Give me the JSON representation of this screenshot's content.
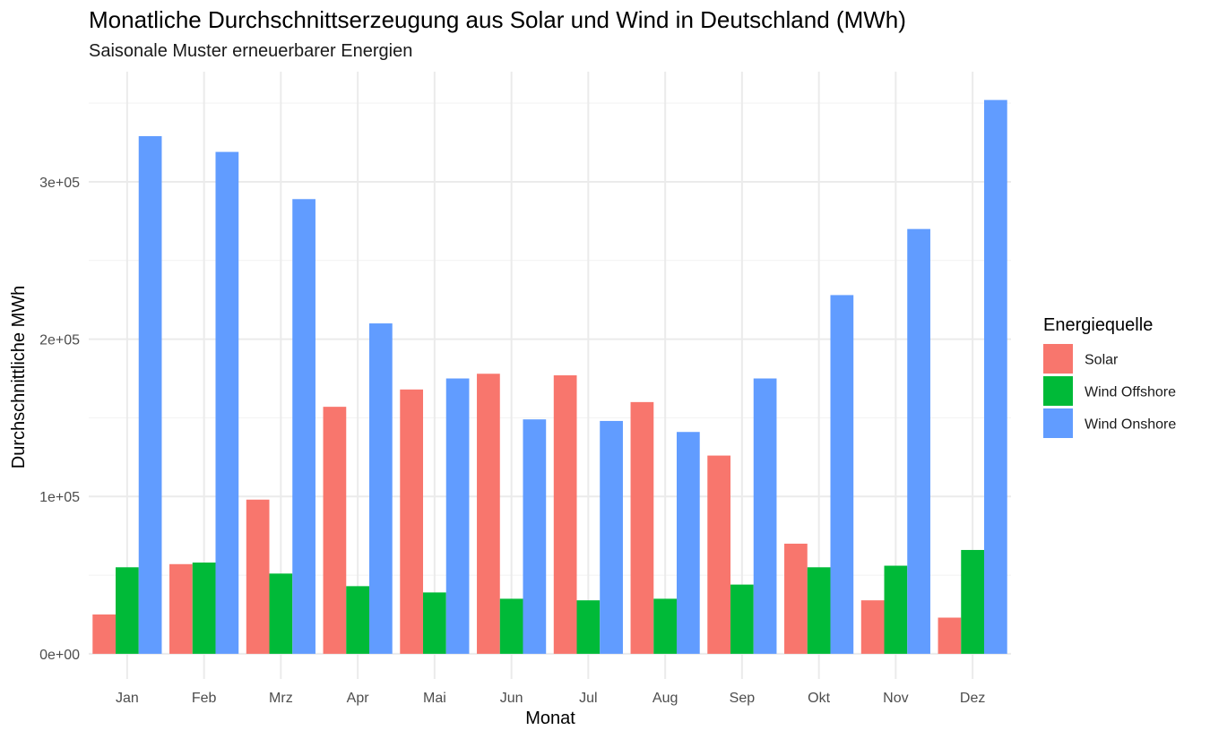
{
  "chart_data": {
    "type": "bar",
    "title": "Monatliche Durchschnittserzeugung aus Solar und Wind in Deutschland (MWh)",
    "subtitle": "Saisonale Muster erneuerbarer Energien",
    "xlabel": "Monat",
    "ylabel": "Durchschnittliche MWh",
    "categories": [
      "Jan",
      "Feb",
      "Mrz",
      "Apr",
      "Mai",
      "Jun",
      "Jul",
      "Aug",
      "Sep",
      "Okt",
      "Nov",
      "Dez"
    ],
    "series": [
      {
        "name": "Solar",
        "color": "#F8766D",
        "values": [
          25000,
          57000,
          98000,
          157000,
          168000,
          178000,
          177000,
          160000,
          126000,
          70000,
          34000,
          23000
        ]
      },
      {
        "name": "Wind Offshore",
        "color": "#00BA38",
        "values": [
          55000,
          58000,
          51000,
          43000,
          39000,
          35000,
          34000,
          35000,
          44000,
          55000,
          56000,
          66000
        ]
      },
      {
        "name": "Wind Onshore",
        "color": "#619CFF",
        "values": [
          329000,
          319000,
          289000,
          210000,
          175000,
          149000,
          148000,
          141000,
          175000,
          228000,
          270000,
          352000
        ]
      }
    ],
    "ylim": [
      -16000,
      370000
    ],
    "yticks": [
      0,
      100000,
      200000,
      300000
    ],
    "ytick_labels": [
      "0e+00",
      "1e+05",
      "2e+05",
      "3e+05"
    ],
    "grid": true,
    "legend": {
      "title": "Energiequelle",
      "position": "right"
    }
  }
}
